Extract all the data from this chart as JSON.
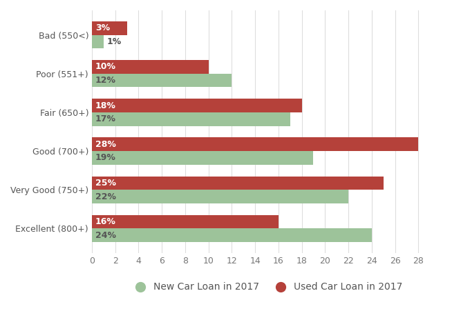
{
  "categories": [
    "Bad (550<)",
    "Poor (551+)",
    "Fair (650+)",
    "Good (700+)",
    "Very Good (750+)",
    "Excellent (800+)"
  ],
  "new_car": [
    1,
    12,
    17,
    19,
    22,
    24
  ],
  "used_car": [
    3,
    10,
    18,
    28,
    25,
    16
  ],
  "new_car_color": "#9dc39a",
  "used_car_color": "#b5413a",
  "new_car_label": "New Car Loan in 2017",
  "used_car_label": "Used Car Loan in 2017",
  "xlim": [
    0,
    30
  ],
  "xticks": [
    0,
    2,
    4,
    6,
    8,
    10,
    12,
    14,
    16,
    18,
    20,
    22,
    24,
    26,
    28
  ],
  "background_color": "#ffffff",
  "bar_height": 0.35,
  "label_color_new_inside": "#555555",
  "label_color_new_outside": "#555555",
  "label_color_used": "#ffffff",
  "fontsize_labels": 9,
  "fontsize_ticks": 9,
  "fontsize_legend": 10,
  "ytick_color": "#555555",
  "xtick_color": "#777777",
  "grid_color": "#dddddd"
}
